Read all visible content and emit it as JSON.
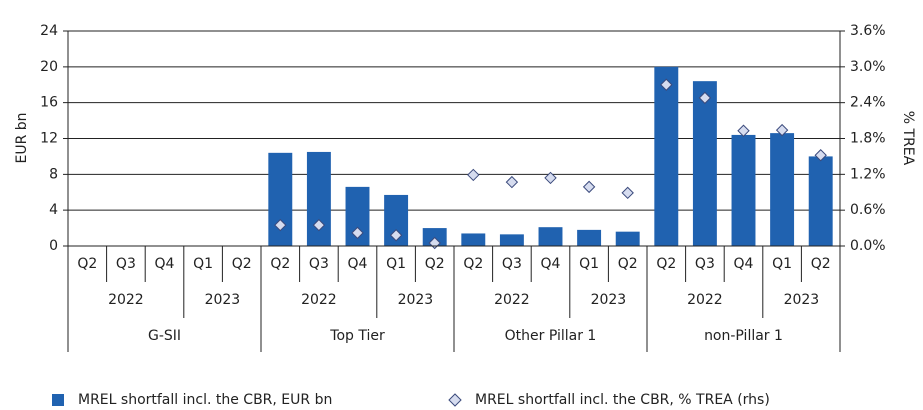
{
  "chart_data": {
    "type": "bar_with_markers",
    "categories": [
      "Q2",
      "Q3",
      "Q4",
      "Q1",
      "Q2",
      "Q2",
      "Q3",
      "Q4",
      "Q1",
      "Q2",
      "Q2",
      "Q3",
      "Q4",
      "Q1",
      "Q2",
      "Q2",
      "Q3",
      "Q4",
      "Q1",
      "Q2"
    ],
    "years": [
      "2022",
      "2023",
      "2022",
      "2023",
      "2022",
      "2023",
      "2022",
      "2023"
    ],
    "groups": [
      "G-SII",
      "Top Tier",
      "Other Pillar 1",
      "non-Pillar 1"
    ],
    "series": [
      {
        "name": "MREL shortfall incl. the CBR, EUR bn",
        "color": "#2062b0",
        "marker": "bar",
        "values": [
          null,
          null,
          null,
          null,
          null,
          10.4,
          10.5,
          6.6,
          5.7,
          2.0,
          1.4,
          1.3,
          2.1,
          1.8,
          1.6,
          20.0,
          18.4,
          12.4,
          12.6,
          10.0
        ]
      },
      {
        "name": "MREL shortfall incl. the CBR, % TREA (rhs)",
        "color": "#d6dcef",
        "marker": "diamond",
        "axis": "y2",
        "values": [
          null,
          null,
          null,
          null,
          null,
          0.35,
          0.35,
          0.22,
          0.18,
          0.05,
          1.19,
          1.07,
          1.14,
          0.99,
          0.89,
          2.7,
          2.48,
          1.93,
          1.94,
          1.52
        ]
      }
    ],
    "ylabel": "EUR bn",
    "y2label": "% TREA",
    "ylim": [
      0,
      24
    ],
    "yticks": [
      0,
      4,
      8,
      12,
      16,
      20,
      24
    ],
    "y2lim": [
      0,
      3.6
    ],
    "y2ticks": [
      {
        "value": 0,
        "label": "0.0%"
      },
      {
        "value": 0.6,
        "label": "0.6%"
      },
      {
        "value": 1.2,
        "label": "1.2%"
      },
      {
        "value": 1.8,
        "label": "1.8%"
      },
      {
        "value": 2.4,
        "label": "2.4%"
      },
      {
        "value": 3.0,
        "label": "3.0%"
      },
      {
        "value": 3.6,
        "label": "3.6%"
      }
    ],
    "grid": true
  }
}
